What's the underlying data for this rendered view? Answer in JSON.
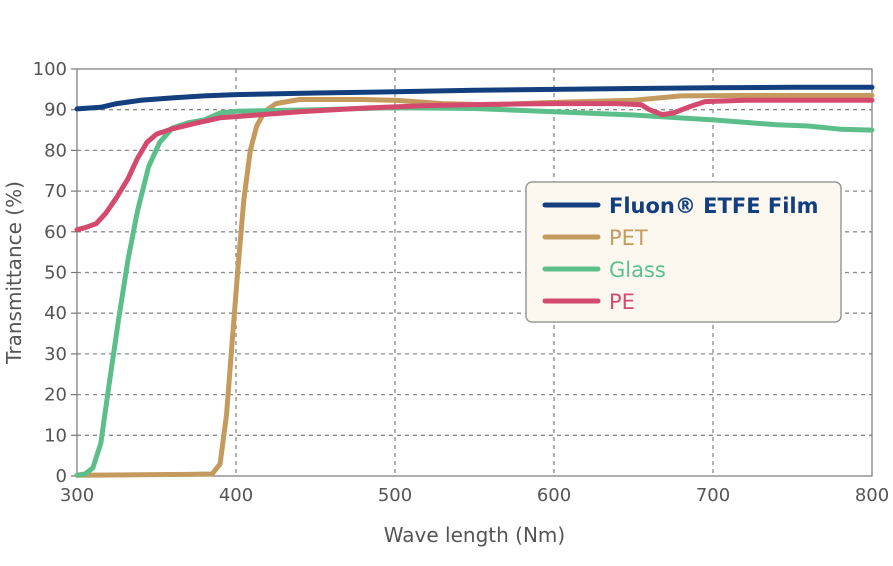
{
  "chart_data": {
    "type": "line",
    "title": "",
    "xlabel": "Wave length (Nm)",
    "ylabel": "Transmittance (%)",
    "xlim": [
      300,
      800
    ],
    "ylim": [
      0,
      100
    ],
    "x_ticks": [
      "300",
      "400",
      "500",
      "600",
      "700",
      "800"
    ],
    "y_ticks": [
      "0",
      "10",
      "20",
      "30",
      "40",
      "50",
      "60",
      "70",
      "80",
      "90",
      "100"
    ],
    "grid": true,
    "legend_position": "right",
    "series": [
      {
        "name": "Fluon® ETFE Film",
        "color": "#133f7f",
        "points": [
          [
            300,
            90.2
          ],
          [
            315,
            90.6
          ],
          [
            325,
            91.5
          ],
          [
            340,
            92.3
          ],
          [
            360,
            92.9
          ],
          [
            380,
            93.4
          ],
          [
            400,
            93.7
          ],
          [
            450,
            94.1
          ],
          [
            500,
            94.4
          ],
          [
            550,
            94.8
          ],
          [
            600,
            95.0
          ],
          [
            650,
            95.2
          ],
          [
            700,
            95.4
          ],
          [
            750,
            95.5
          ],
          [
            800,
            95.5
          ]
        ]
      },
      {
        "name": "PET",
        "color": "#c49a5e",
        "points": [
          [
            300,
            0.2
          ],
          [
            340,
            0.3
          ],
          [
            370,
            0.4
          ],
          [
            385,
            0.5
          ],
          [
            390,
            3
          ],
          [
            394,
            15
          ],
          [
            398,
            35
          ],
          [
            401,
            50
          ],
          [
            405,
            68
          ],
          [
            409,
            80
          ],
          [
            413,
            86
          ],
          [
            418,
            89.5
          ],
          [
            425,
            91.5
          ],
          [
            440,
            92.5
          ],
          [
            480,
            92.5
          ],
          [
            500,
            92.3
          ],
          [
            530,
            91.5
          ],
          [
            560,
            91.2
          ],
          [
            600,
            91.8
          ],
          [
            650,
            92.3
          ],
          [
            680,
            93.4
          ],
          [
            720,
            93.5
          ],
          [
            800,
            93.5
          ]
        ]
      },
      {
        "name": "Glass",
        "color": "#5cbf8a",
        "points": [
          [
            300,
            0.2
          ],
          [
            305,
            0.5
          ],
          [
            310,
            2
          ],
          [
            315,
            8
          ],
          [
            320,
            22
          ],
          [
            326,
            38
          ],
          [
            332,
            53
          ],
          [
            338,
            65
          ],
          [
            345,
            76
          ],
          [
            352,
            82
          ],
          [
            360,
            85.5
          ],
          [
            370,
            86.8
          ],
          [
            380,
            87.5
          ],
          [
            390,
            89.2
          ],
          [
            400,
            89.6
          ],
          [
            450,
            90
          ],
          [
            500,
            90.5
          ],
          [
            550,
            90.3
          ],
          [
            600,
            89.5
          ],
          [
            650,
            88.7
          ],
          [
            700,
            87.5
          ],
          [
            740,
            86.3
          ],
          [
            760,
            86
          ],
          [
            780,
            85.2
          ],
          [
            800,
            85
          ]
        ]
      },
      {
        "name": "PE",
        "color": "#d34a6e",
        "points": [
          [
            300,
            60.5
          ],
          [
            305,
            61
          ],
          [
            312,
            62
          ],
          [
            318,
            64.5
          ],
          [
            325,
            68.5
          ],
          [
            332,
            73
          ],
          [
            338,
            78
          ],
          [
            344,
            82
          ],
          [
            350,
            84
          ],
          [
            360,
            85.3
          ],
          [
            375,
            86.7
          ],
          [
            390,
            88
          ],
          [
            410,
            88.6
          ],
          [
            440,
            89.5
          ],
          [
            480,
            90.4
          ],
          [
            520,
            91
          ],
          [
            560,
            91.3
          ],
          [
            600,
            91.5
          ],
          [
            640,
            91.5
          ],
          [
            655,
            91.2
          ],
          [
            660,
            90
          ],
          [
            668,
            88.8
          ],
          [
            675,
            89.2
          ],
          [
            685,
            90.7
          ],
          [
            695,
            92
          ],
          [
            720,
            92.3
          ],
          [
            800,
            92.3
          ]
        ]
      }
    ]
  }
}
